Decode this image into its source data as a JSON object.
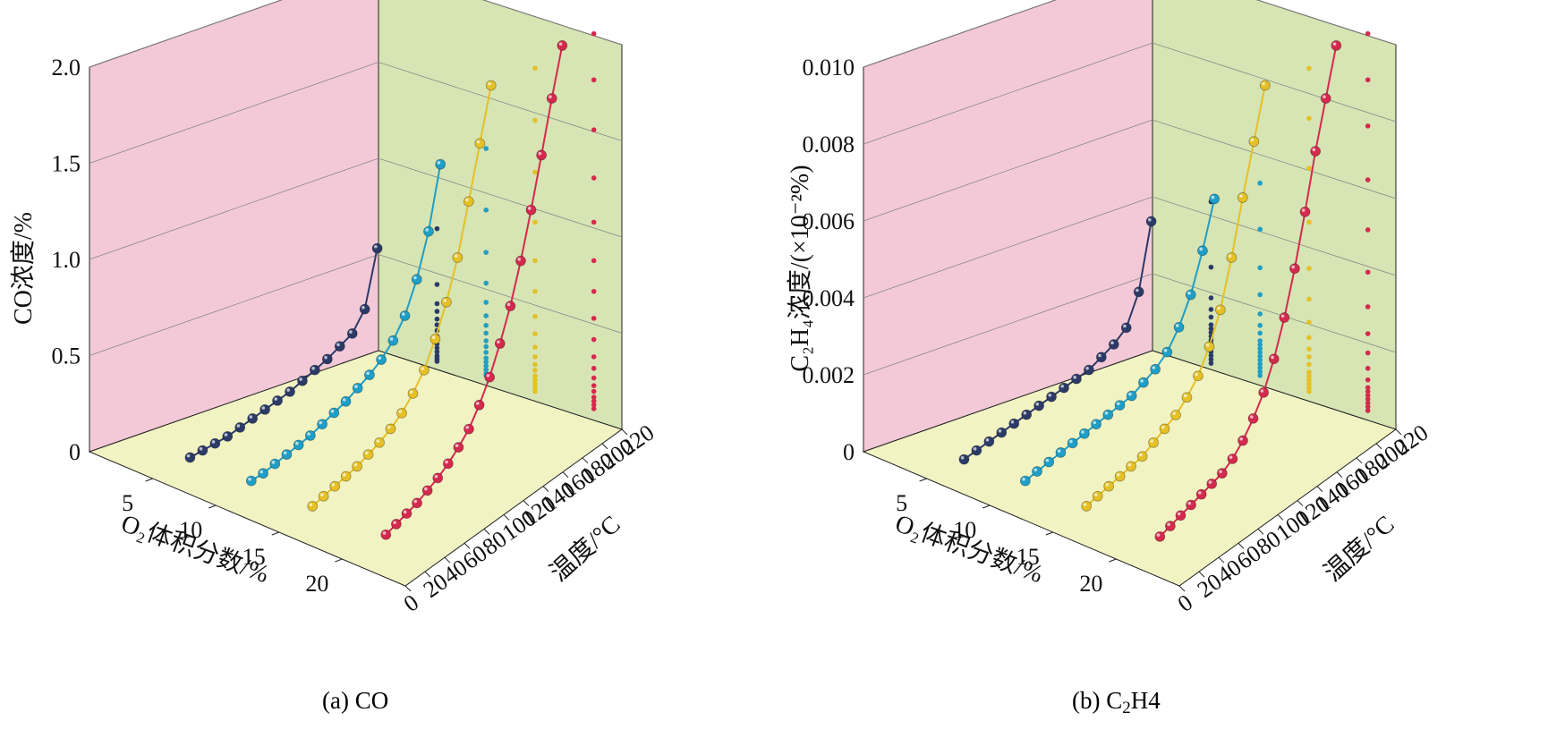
{
  "charts": [
    {
      "caption_pre": "(a) CO",
      "caption_sub": "",
      "caption_post": "",
      "type": "3d-line",
      "z_label": "CO浓度/%",
      "z_ticks": [
        "0",
        "0.5",
        "1.0",
        "1.5",
        "2.0"
      ],
      "z_max": 2.0,
      "o2_label": "O₂体积分数/%",
      "o2_ticks": [
        "5",
        "10",
        "15",
        "20"
      ],
      "temp_label": "温度/°C",
      "temp_ticks": [
        "0",
        "20",
        "40",
        "60",
        "80",
        "100",
        "120",
        "140",
        "160",
        "180",
        "200",
        "220"
      ],
      "series": [
        {
          "o2": 5,
          "color": "#2b3a67",
          "temps": [
            30,
            40,
            50,
            60,
            70,
            80,
            90,
            100,
            110,
            120,
            130,
            140,
            150,
            160,
            170,
            180
          ],
          "values": [
            0.03,
            0.04,
            0.05,
            0.06,
            0.08,
            0.1,
            0.12,
            0.14,
            0.16,
            0.19,
            0.22,
            0.25,
            0.29,
            0.33,
            0.43,
            0.72
          ]
        },
        {
          "o2": 10,
          "color": "#1f9ec7",
          "temps": [
            30,
            40,
            50,
            60,
            70,
            80,
            90,
            100,
            110,
            120,
            130,
            140,
            150,
            160,
            170,
            180,
            190
          ],
          "values": [
            0.04,
            0.05,
            0.07,
            0.09,
            0.11,
            0.13,
            0.16,
            0.19,
            0.22,
            0.26,
            0.3,
            0.35,
            0.42,
            0.52,
            0.68,
            0.9,
            1.22
          ]
        },
        {
          "o2": 15,
          "color": "#e5c026",
          "temps": [
            30,
            40,
            50,
            60,
            70,
            80,
            90,
            100,
            110,
            120,
            130,
            140,
            150,
            160,
            170,
            180,
            190
          ],
          "values": [
            0.04,
            0.06,
            0.08,
            0.1,
            0.12,
            0.15,
            0.18,
            0.22,
            0.27,
            0.34,
            0.43,
            0.56,
            0.72,
            0.92,
            1.18,
            1.45,
            1.72
          ]
        },
        {
          "o2": 21,
          "color": "#d42a4e",
          "temps": [
            30,
            40,
            50,
            60,
            70,
            80,
            90,
            100,
            110,
            120,
            130,
            140,
            150,
            160,
            170,
            180,
            190,
            200
          ],
          "values": [
            0.05,
            0.07,
            0.09,
            0.11,
            0.14,
            0.17,
            0.21,
            0.26,
            0.32,
            0.41,
            0.52,
            0.66,
            0.82,
            1.02,
            1.25,
            1.5,
            1.76,
            2.0
          ]
        }
      ]
    },
    {
      "caption_pre": "(b) C",
      "caption_sub": "2",
      "caption_post": "H4",
      "type": "3d-line",
      "z_label": "C₂H₄浓度/(×10⁻²%)",
      "z_ticks": [
        "0.002",
        "0.004",
        "0.006",
        "0.008",
        "0.010"
      ],
      "z_max": 0.01,
      "o2_label": "O₂体积分数/%",
      "o2_ticks": [
        "5",
        "10",
        "15",
        "20"
      ],
      "temp_label": "温度/°C",
      "temp_ticks": [
        "0",
        "20",
        "40",
        "60",
        "80",
        "100",
        "120",
        "140",
        "160",
        "180",
        "200",
        "220"
      ],
      "series": [
        {
          "o2": 5,
          "color": "#2b3a67",
          "temps": [
            30,
            40,
            50,
            60,
            70,
            80,
            90,
            100,
            110,
            120,
            130,
            140,
            150,
            160,
            170,
            180
          ],
          "values": [
            0.0001,
            0.0002,
            0.0003,
            0.0004,
            0.0005,
            0.0006,
            0.0007,
            0.0008,
            0.0009,
            0.001,
            0.0011,
            0.0013,
            0.0015,
            0.0018,
            0.0026,
            0.0043
          ]
        },
        {
          "o2": 10,
          "color": "#1f9ec7",
          "temps": [
            30,
            40,
            50,
            60,
            70,
            80,
            90,
            100,
            110,
            120,
            130,
            140,
            150,
            160,
            170,
            180,
            190
          ],
          "values": [
            0.0002,
            0.0003,
            0.0004,
            0.0005,
            0.0006,
            0.0007,
            0.0008,
            0.0009,
            0.001,
            0.0011,
            0.0013,
            0.0015,
            0.0018,
            0.0023,
            0.003,
            0.004,
            0.0052
          ]
        },
        {
          "o2": 15,
          "color": "#e5c026",
          "temps": [
            30,
            40,
            50,
            60,
            70,
            80,
            90,
            100,
            110,
            120,
            130,
            140,
            150,
            160,
            170,
            180,
            190
          ],
          "values": [
            0.0002,
            0.0003,
            0.0004,
            0.0005,
            0.0006,
            0.0007,
            0.0009,
            0.0011,
            0.0013,
            0.0016,
            0.002,
            0.0026,
            0.0034,
            0.0046,
            0.006,
            0.0073,
            0.0086
          ]
        },
        {
          "o2": 21,
          "color": "#d42a4e",
          "temps": [
            30,
            40,
            50,
            60,
            70,
            80,
            90,
            100,
            110,
            120,
            130,
            140,
            150,
            160,
            170,
            180,
            190,
            200
          ],
          "values": [
            0.0002,
            0.0003,
            0.0004,
            0.0005,
            0.0006,
            0.0007,
            0.0008,
            0.001,
            0.0013,
            0.0017,
            0.0022,
            0.0029,
            0.0038,
            0.0049,
            0.0062,
            0.0076,
            0.0088,
            0.01
          ]
        }
      ]
    }
  ],
  "colors": {
    "wall_back": "#f3c9d8",
    "wall_side": "#d6e5b3",
    "floor": "#f2f3c3",
    "grid": "#888888"
  }
}
